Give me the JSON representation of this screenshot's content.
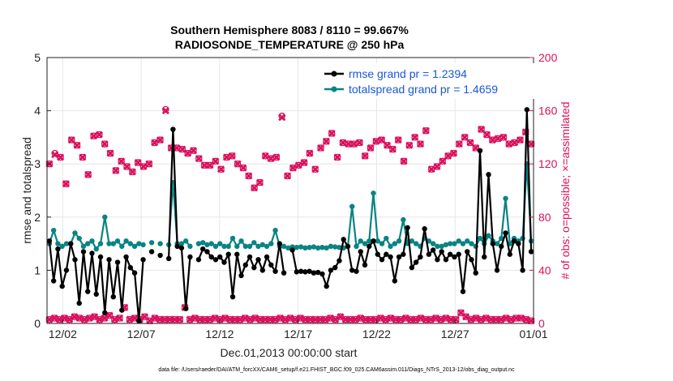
{
  "chart_data": {
    "type": "line",
    "title": "Southern Hemisphere 8083 / 8110 = 99.667%",
    "subtitle": "RADIOSONDE_TEMPERATURE @ 250 hPa",
    "xlabel": "Dec.01,2013 00:00:00 start",
    "ylabel": "rmse and totalspread",
    "y2label": "# of obs: o=possible; ×=assimilated",
    "footer": "data file: /Users/raeder/DAI/ATM_forcXX/CAM6_setup/f.e21.FHIST_BGC.f09_025.CAM6assim.011/Diags_NTrS_2013-12/obs_diag_output.nc",
    "x_range": [
      0,
      62
    ],
    "ylim": [
      0,
      5
    ],
    "y2lim": [
      0,
      200
    ],
    "x_ticks": [
      {
        "label": "12/02",
        "value": 2
      },
      {
        "label": "12/07",
        "value": 12
      },
      {
        "label": "12/12",
        "value": 22
      },
      {
        "label": "12/17",
        "value": 32
      },
      {
        "label": "12/22",
        "value": 42
      },
      {
        "label": "12/27",
        "value": 52
      },
      {
        "label": "01/01",
        "value": 62
      }
    ],
    "y_ticks": [
      "0",
      "1",
      "2",
      "3",
      "4",
      "5"
    ],
    "y2_ticks": [
      "0",
      "40",
      "80",
      "120",
      "160",
      "200"
    ],
    "colors": {
      "rmse": "#000000",
      "spread": "#0a8384",
      "obs": "#d9115d",
      "legend_text": "#1a57d6"
    },
    "legend": [
      {
        "name": "rmse grand pr = 1.2394"
      },
      {
        "name": "totalspread grand pr = 1.4659"
      }
    ],
    "series": [
      {
        "name": "rmse",
        "axis": "left",
        "values": [
          1.55,
          0.8,
          1.4,
          0.7,
          1.0,
          1.5,
          1.2,
          0.38,
          1.35,
          0.6,
          1.32,
          0.55,
          1.25,
          0.2,
          1.2,
          0.5,
          1.15,
          0.25,
          1.25,
          1.05,
          0.95,
          0.05,
          1.2,
          null,
          1.35,
          null,
          1.28,
          null,
          1.22,
          3.65,
          1.45,
          1.42,
          0.28,
          1.25,
          null,
          1.2,
          1.4,
          1.35,
          1.25,
          1.2,
          1.25,
          1.15,
          1.3,
          0.5,
          1.3,
          0.9,
          1.1,
          1.25,
          1.05,
          1.2,
          1.0,
          1.25,
          1.1,
          0.98,
          1.5,
          0.95,
          null,
          1.38,
          0.97,
          0.98,
          0.97,
          0.98,
          0.95,
          0.96,
          0.93,
          0.7,
          1.0,
          1.05,
          1.18,
          1.58,
          1.45,
          1.0,
          0.98,
          1.35,
          1.1,
          1.45,
          1.55,
          1.3,
          1.2,
          1.3,
          1.25,
          0.8,
          1.25,
          1.3,
          1.8,
          1.05,
          1.15,
          1.25,
          1.78,
          1.3,
          1.38,
          1.2,
          1.35,
          1.2,
          1.3,
          1.25,
          1.3,
          0.6,
          1.35,
          1.2,
          0.95,
          3.25,
          1.25,
          2.8,
          1.5,
          1.0,
          1.45,
          1.7,
          1.3,
          1.55,
          1.5,
          1.0,
          4.02,
          1.35
        ]
      },
      {
        "name": "totalspread",
        "axis": "left",
        "values": [
          1.5,
          1.75,
          1.5,
          1.45,
          1.5,
          1.5,
          1.7,
          1.6,
          1.45,
          1.5,
          1.55,
          1.4,
          1.5,
          2.0,
          1.5,
          1.5,
          1.55,
          1.45,
          1.55,
          1.5,
          1.45,
          1.5,
          1.48,
          null,
          1.52,
          null,
          1.5,
          null,
          1.48,
          2.65,
          1.5,
          1.5,
          1.55,
          1.45,
          null,
          1.5,
          1.52,
          1.48,
          1.5,
          1.45,
          1.5,
          1.45,
          1.45,
          1.6,
          1.45,
          1.55,
          1.45,
          1.45,
          1.52,
          1.45,
          1.48,
          1.45,
          1.5,
          1.75,
          1.45,
          1.45,
          1.42,
          1.44,
          1.43,
          1.44,
          1.42,
          1.43,
          1.44,
          1.42,
          1.43,
          1.42,
          1.45,
          1.44,
          1.43,
          1.42,
          1.45,
          2.2,
          1.45,
          1.55,
          1.5,
          1.55,
          2.45,
          1.55,
          1.5,
          1.6,
          1.45,
          1.5,
          1.55,
          1.95,
          1.5,
          1.55,
          1.5,
          1.45,
          1.6,
          1.55,
          1.5,
          1.45,
          1.45,
          1.48,
          1.5,
          1.5,
          1.55,
          1.5,
          1.55,
          1.5,
          1.45,
          1.6,
          1.5,
          1.65,
          1.55,
          1.5,
          1.6,
          2.35,
          1.5,
          1.6,
          1.55,
          1.6,
          3.0,
          1.55
        ]
      },
      {
        "name": "possible",
        "axis": "right",
        "marker": "circle",
        "values": [
          120,
          128,
          125,
          105,
          138,
          134,
          125,
          112,
          141,
          142,
          135,
          128,
          115,
          122,
          118,
          114,
          121,
          118,
          120,
          136,
          138,
          161,
          132,
          132,
          131,
          128,
          130,
          124,
          119,
          119,
          122,
          116,
          125,
          126,
          120,
          117,
          111,
          102,
          106,
          126,
          124,
          125,
          156,
          111,
          117,
          119,
          121,
          128,
          116,
          132,
          137,
          143,
          125,
          136,
          135,
          135,
          136,
          126,
          132,
          137,
          138,
          134,
          131,
          138,
          122,
          134,
          140,
          135,
          145,
          116,
          118,
          122,
          126,
          128,
          135,
          140,
          136,
          132,
          146,
          142,
          138,
          139,
          140,
          135,
          136,
          138,
          144,
          135
        ],
        "x_positions": "spread"
      },
      {
        "name": "assimilated",
        "axis": "right",
        "marker": "x",
        "values": [
          120,
          127,
          125,
          105,
          138,
          134,
          125,
          112,
          141,
          142,
          135,
          128,
          115,
          122,
          118,
          114,
          121,
          118,
          120,
          136,
          138,
          160,
          132,
          132,
          131,
          128,
          130,
          124,
          119,
          119,
          122,
          116,
          125,
          126,
          120,
          117,
          111,
          102,
          106,
          126,
          124,
          125,
          155,
          111,
          117,
          119,
          121,
          128,
          116,
          132,
          137,
          143,
          125,
          136,
          135,
          135,
          136,
          126,
          132,
          137,
          138,
          134,
          131,
          138,
          122,
          134,
          140,
          135,
          145,
          116,
          118,
          122,
          126,
          128,
          135,
          140,
          136,
          132,
          146,
          142,
          138,
          139,
          140,
          135,
          136,
          138,
          144,
          135
        ]
      },
      {
        "name": "possible_low",
        "axis": "right",
        "marker": "circle",
        "values": [
          3,
          4,
          3,
          4,
          3,
          5,
          4,
          3,
          4,
          5,
          3,
          4,
          6,
          3,
          4,
          12,
          3,
          4,
          3,
          5,
          2,
          4,
          3,
          3,
          3,
          3,
          3,
          12,
          3,
          4,
          3,
          3,
          3,
          4,
          3,
          4,
          3,
          3,
          3,
          4,
          3,
          4,
          3,
          3,
          3,
          3,
          4,
          3,
          4,
          3,
          4,
          3,
          3,
          3,
          3,
          3,
          4,
          3,
          5,
          3,
          3,
          3,
          4,
          3,
          3,
          3,
          4,
          3,
          4,
          3,
          3,
          4,
          3,
          3,
          4,
          3,
          3,
          4,
          3,
          4,
          3,
          3,
          8,
          5,
          3,
          4,
          3,
          4,
          3,
          3,
          3,
          4,
          3,
          4,
          4,
          3,
          2
        ]
      }
    ]
  }
}
